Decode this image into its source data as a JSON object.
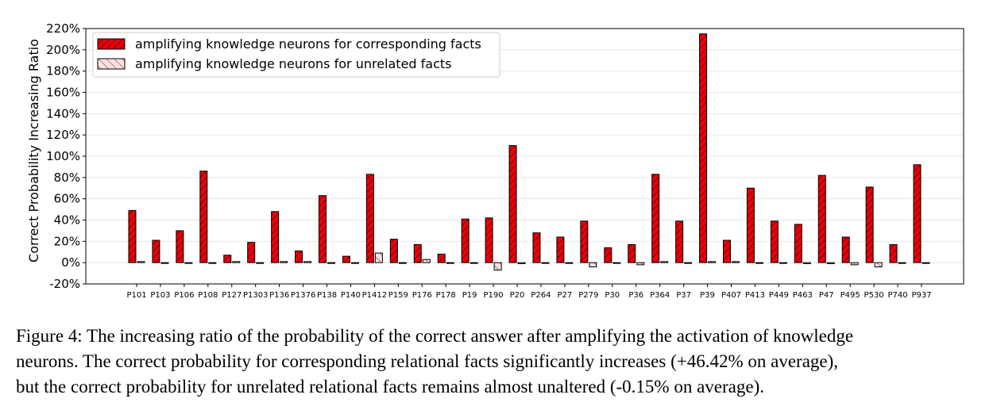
{
  "caption": "Figure 4: The increasing ratio of the probability of the correct answer after amplifying the activation of knowledge\nneurons. The correct probability for corresponding relational facts significantly increases (+46.42% on average),\nbut the correct probability for unrelated relational facts remains almost unaltered (-0.15% on average).",
  "colors": {
    "corresponding": "#e8000b",
    "unrelated": "#fde0dd",
    "edge": "#000000"
  },
  "chart_data": {
    "type": "bar",
    "title": "",
    "xlabel": "",
    "ylabel": "Correct Probability Increasing Ratio",
    "ylim": [
      -20,
      220
    ],
    "yticks": [
      -20,
      0,
      20,
      40,
      60,
      80,
      100,
      120,
      140,
      160,
      180,
      200,
      220
    ],
    "ytick_labels": [
      "-20%",
      "0%",
      "20%",
      "40%",
      "60%",
      "80%",
      "100%",
      "120%",
      "140%",
      "160%",
      "180%",
      "200%",
      "220%"
    ],
    "grid": true,
    "legend_position": "top-left",
    "categories": [
      "P101",
      "P103",
      "P106",
      "P108",
      "P127",
      "P1303",
      "P136",
      "P1376",
      "P138",
      "P140",
      "P1412",
      "P159",
      "P176",
      "P178",
      "P19",
      "P190",
      "P20",
      "P264",
      "P27",
      "P279",
      "P30",
      "P36",
      "P364",
      "P37",
      "P39",
      "P407",
      "P413",
      "P449",
      "P463",
      "P47",
      "P495",
      "P530",
      "P740",
      "P937"
    ],
    "series": [
      {
        "name": "amplifying knowledge neurons for corresponding facts",
        "values": [
          49,
          21,
          30,
          86,
          7,
          19,
          48,
          11,
          63,
          6,
          83,
          22,
          17,
          8,
          41,
          42,
          110,
          28,
          24,
          39,
          14,
          17,
          83,
          39,
          215,
          21,
          70,
          39,
          36,
          82,
          24,
          71,
          17,
          92
        ]
      },
      {
        "name": "amplifying knowledge neurons for unrelated facts",
        "values": [
          1,
          0,
          0,
          0,
          1,
          0,
          1,
          1,
          0,
          0,
          9,
          0,
          3,
          0,
          0,
          -7,
          -1,
          0,
          0,
          -4,
          0,
          -2,
          1,
          0,
          1,
          1,
          0,
          0,
          -1,
          -1,
          -2,
          -4,
          0,
          0
        ]
      }
    ]
  }
}
